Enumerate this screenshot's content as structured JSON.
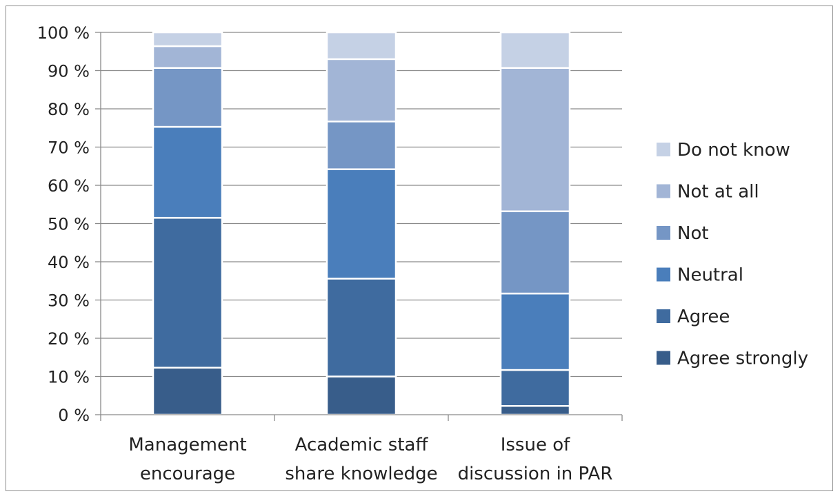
{
  "chart_data": {
    "type": "bar",
    "stacked": true,
    "percent_stacked": true,
    "categories": [
      [
        "Management",
        "encourage"
      ],
      [
        "Academic staff",
        "share knowledge"
      ],
      [
        "Issue of",
        "discussion in PAR"
      ]
    ],
    "series": [
      {
        "name": "Agree strongly",
        "color": "#385d8a",
        "values": [
          12.3,
          10.0,
          2.3
        ]
      },
      {
        "name": "Agree",
        "color": "#3f6b9f",
        "values": [
          39.2,
          25.6,
          9.4
        ]
      },
      {
        "name": "Neutral",
        "color": "#4a7ebb",
        "values": [
          23.8,
          28.6,
          20.0
        ]
      },
      {
        "name": "Not",
        "color": "#7596c5",
        "values": [
          15.4,
          12.5,
          21.5
        ]
      },
      {
        "name": "Not at all",
        "color": "#a2b5d6",
        "values": [
          5.7,
          16.3,
          37.5
        ]
      },
      {
        "name": "Do not know",
        "color": "#c5d1e5",
        "values": [
          3.6,
          7.0,
          9.3
        ]
      }
    ],
    "ylim": [
      0,
      100
    ],
    "yticks": [
      "0 %",
      "10 %",
      "20 %",
      "30 %",
      "40 %",
      "50 %",
      "60 %",
      "70 %",
      "80 %",
      "90 %",
      "100 %"
    ],
    "grid": true,
    "legend_position": "right",
    "title": "",
    "xlabel": "",
    "ylabel": ""
  }
}
